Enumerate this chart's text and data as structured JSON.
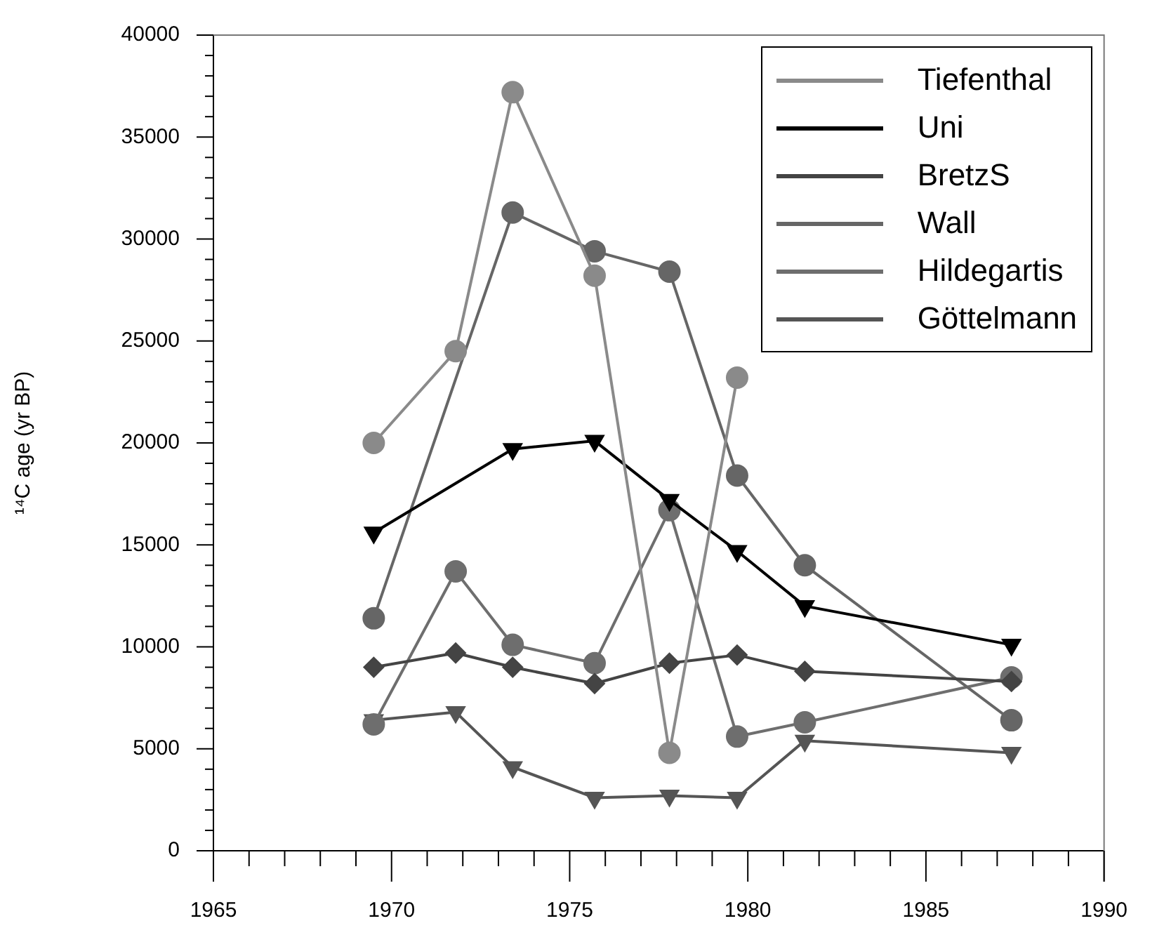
{
  "chart_data": {
    "type": "line",
    "ylabel": "¹⁴C age (yr BP)",
    "xlim": [
      1965,
      1990
    ],
    "xticks": [
      1965,
      {
        "value": 1966,
        "label": null
      },
      {
        "value": 1967,
        "label": null
      },
      {
        "value": 1968,
        "label": null
      },
      {
        "value": 1969,
        "label": null
      },
      1970,
      {
        "value": 1971,
        "label": null
      },
      {
        "value": 1972,
        "label": null
      },
      {
        "value": 1973,
        "label": null
      },
      {
        "value": 1974,
        "label": null
      },
      1975,
      {
        "value": 1976,
        "label": null
      },
      {
        "value": 1977,
        "label": null
      },
      {
        "value": 1978,
        "label": null
      },
      {
        "value": 1979,
        "label": null
      },
      1980,
      {
        "value": 1981,
        "label": null
      },
      {
        "value": 1982,
        "label": null
      },
      {
        "value": 1983,
        "label": null
      },
      {
        "value": 1984,
        "label": null
      },
      1985,
      {
        "value": 1986,
        "label": null
      },
      {
        "value": 1987,
        "label": null
      },
      {
        "value": 1988,
        "label": null
      },
      {
        "value": 1989,
        "label": null
      },
      1990
    ],
    "ylim": [
      0,
      40000
    ],
    "yticks": [
      0,
      {
        "value": 1000,
        "label": null
      },
      {
        "value": 2000,
        "label": null
      },
      {
        "value": 3000,
        "label": null
      },
      {
        "value": 4000,
        "label": null
      },
      5000,
      {
        "value": 6000,
        "label": null
      },
      {
        "value": 7000,
        "label": null
      },
      {
        "value": 8000,
        "label": null
      },
      {
        "value": 9000,
        "label": null
      },
      10000,
      {
        "value": 11000,
        "label": null
      },
      {
        "value": 12000,
        "label": null
      },
      {
        "value": 13000,
        "label": null
      },
      {
        "value": 14000,
        "label": null
      },
      15000,
      {
        "value": 16000,
        "label": null
      },
      {
        "value": 17000,
        "label": null
      },
      {
        "value": 18000,
        "label": null
      },
      {
        "value": 19000,
        "label": null
      },
      20000,
      {
        "value": 21000,
        "label": null
      },
      {
        "value": 22000,
        "label": null
      },
      {
        "value": 23000,
        "label": null
      },
      {
        "value": 24000,
        "label": null
      },
      25000,
      {
        "value": 26000,
        "label": null
      },
      {
        "value": 27000,
        "label": null
      },
      {
        "value": 28000,
        "label": null
      },
      {
        "value": 29000,
        "label": null
      },
      30000,
      {
        "value": 31000,
        "label": null
      },
      {
        "value": 32000,
        "label": null
      },
      {
        "value": 33000,
        "label": null
      },
      {
        "value": 34000,
        "label": null
      },
      35000,
      {
        "value": 36000,
        "label": null
      },
      {
        "value": 37000,
        "label": null
      },
      {
        "value": 38000,
        "label": null
      },
      {
        "value": 39000,
        "label": null
      },
      40000
    ],
    "grid": false,
    "legend": "top right",
    "line_style": "solid",
    "series": [
      {
        "name": "Tiefenthal",
        "color": "#8a8a8a",
        "marker": "circle",
        "x": [
          1969.5,
          1971.8,
          1973.4,
          1975.7,
          1977.8,
          1979.7
        ],
        "values": [
          20000,
          24500,
          37200,
          28200,
          4800,
          23200
        ]
      },
      {
        "name": "Uni",
        "color": "#000000",
        "marker": "triangle-down",
        "x": [
          1969.5,
          1973.4,
          1975.7,
          1977.8,
          1979.7,
          1981.6,
          1987.4
        ],
        "values": [
          15600,
          19700,
          20100,
          17200,
          14700,
          12000,
          10100
        ]
      },
      {
        "name": "BretzS",
        "color": "#444444",
        "marker": "diamond",
        "x": [
          1969.5,
          1971.8,
          1973.4,
          1975.7,
          1977.8,
          1979.7,
          1981.6,
          1987.4
        ],
        "values": [
          9000,
          9700,
          9000,
          8200,
          9200,
          9600,
          8800,
          8300
        ]
      },
      {
        "name": "Wall",
        "color": "#666666",
        "marker": "circle",
        "x": [
          1969.5,
          1973.4,
          1975.7,
          1977.8,
          1979.7,
          1981.6,
          1987.4
        ],
        "values": [
          11400,
          31300,
          29400,
          28400,
          18400,
          14000,
          6400
        ]
      },
      {
        "name": "Hildegartis",
        "color": "#6e6e6e",
        "marker": "circle",
        "x": [
          1969.5,
          1971.8,
          1973.4,
          1975.7,
          1977.8,
          1979.7,
          1981.6,
          1987.4
        ],
        "values": [
          6200,
          13700,
          10100,
          9200,
          16700,
          5600,
          6300,
          8500
        ]
      },
      {
        "name": "Göttelmann",
        "color": "#555555",
        "marker": "triangle-down",
        "x": [
          1969.5,
          1971.8,
          1973.4,
          1975.7,
          1977.8,
          1979.7,
          1981.6,
          1987.4
        ],
        "values": [
          6400,
          6800,
          4100,
          2600,
          2700,
          2600,
          5400,
          4800
        ]
      }
    ]
  }
}
